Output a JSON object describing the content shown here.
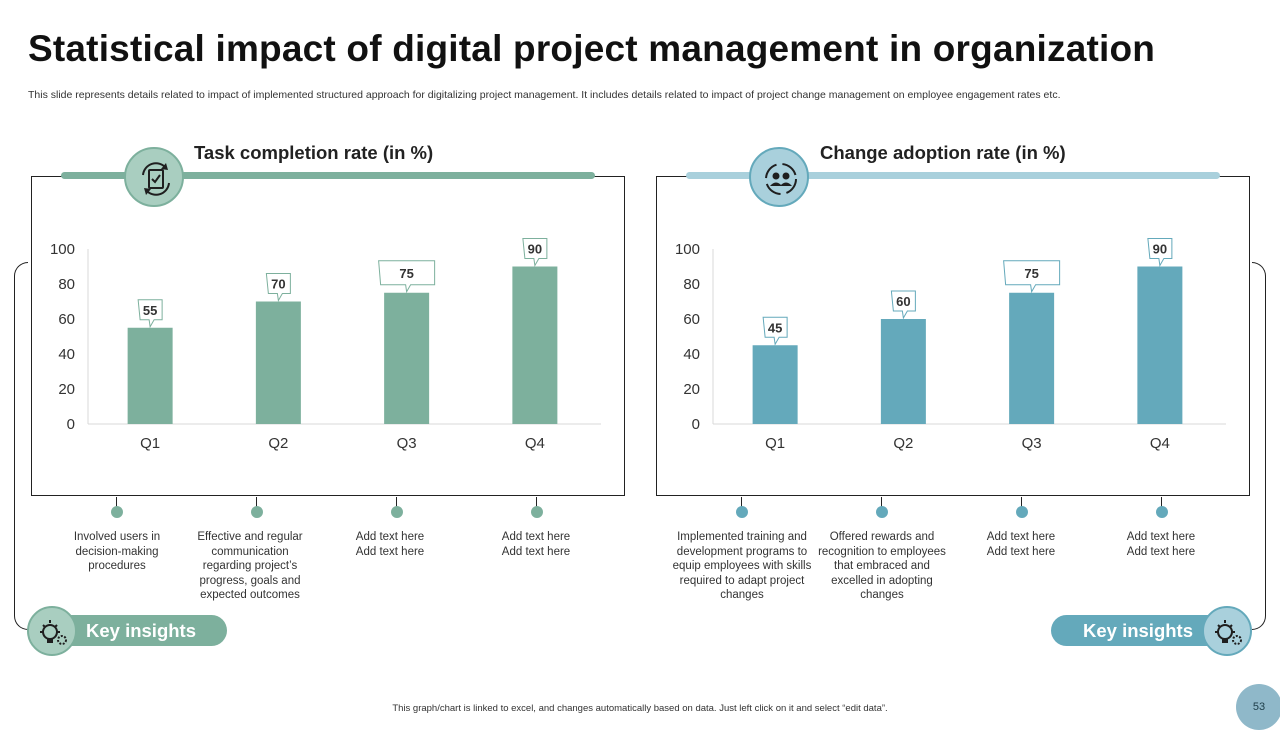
{
  "page": {
    "title": "Statistical impact of digital project management in organization",
    "subtitle": "This slide represents details related to impact of implemented structured approach for digitalizing project management. It includes details related to impact of project change management on employee engagement rates etc.",
    "footer": "This graph/chart is linked to excel, and changes automatically based on data. Just left click on it and select “edit data”.",
    "page_number": "53"
  },
  "colors": {
    "green": "#7db09d",
    "blue": "#64a9bb",
    "green_light": "#a9cec0",
    "blue_light": "#a9d0dc"
  },
  "chart_data": [
    {
      "type": "bar",
      "title": "Task completion rate (in %)",
      "categories": [
        "Q1",
        "Q2",
        "Q3",
        "Q4"
      ],
      "values": [
        55,
        70,
        75,
        90
      ],
      "ylim": [
        0,
        100
      ],
      "yticks": [
        0,
        20,
        40,
        60,
        80,
        100
      ],
      "icon": "clipboard-refresh-icon",
      "notes": [
        "Involved users in decision-making procedures",
        "Effective and regular communication regarding project’s progress, goals and expected outcomes",
        "Add text here Add text here",
        "Add text here Add text here"
      ]
    },
    {
      "type": "bar",
      "title": "Change adoption rate (in %)",
      "categories": [
        "Q1",
        "Q2",
        "Q3",
        "Q4"
      ],
      "values": [
        45,
        60,
        75,
        90
      ],
      "ylim": [
        0,
        100
      ],
      "yticks": [
        0,
        20,
        40,
        60,
        80,
        100
      ],
      "icon": "team-cycle-icon",
      "notes": [
        "Implemented training and development programs to equip employees with skills required to adapt project changes",
        "Offered rewards and recognition to employees that embraced and excelled in adopting changes",
        "Add text here Add text here",
        "Add text here Add text here"
      ]
    }
  ],
  "insights": {
    "left_label": "Key insights",
    "right_label": "Key insights",
    "icon": "bulb-gear-icon"
  }
}
